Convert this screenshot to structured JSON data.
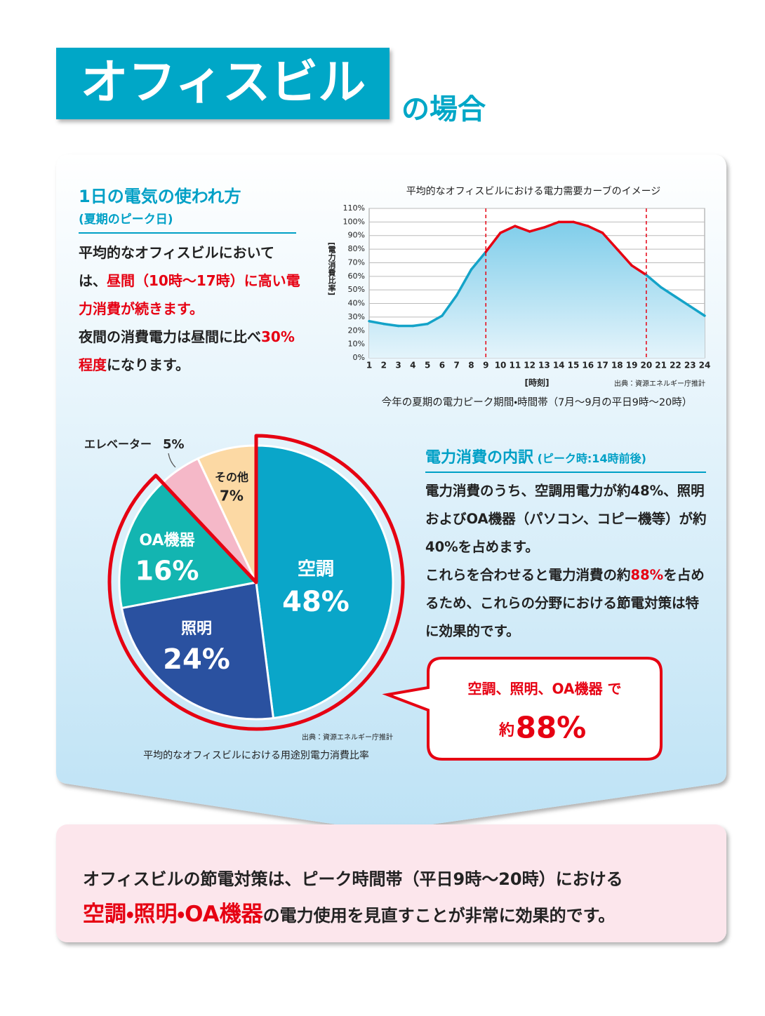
{
  "header": {
    "title": "オフィスビル",
    "suffix": "の場合"
  },
  "usage": {
    "title": "1日の電気の使われ方",
    "subtitle": "(夏期のピーク日)",
    "body": [
      [
        {
          "text": "平均的なオフィスビルにおいては、"
        },
        {
          "text": "昼間（10時～17時）に高い電力消費が続きます。",
          "emphasis": true
        }
      ],
      [
        {
          "text": "夜間の消費電力は昼間に比べ"
        },
        {
          "text": "30%程度",
          "emphasis": true
        },
        {
          "text": "になります。"
        }
      ]
    ]
  },
  "breakdown": {
    "title": "電力消費の内訳",
    "subtitle": "(ピーク時:14時前後)",
    "body": [
      [
        {
          "text": "電力消費のうち、空調用電力が約48%、照明およびOA機器（パソコン、コピー機等）が約40%を占めます。"
        }
      ],
      [
        {
          "text": "これらを合わせると電力消費の約"
        },
        {
          "text": "88%",
          "emphasis": true
        },
        {
          "text": "を占めるため、これらの分野における節電対策は特に効果的です。"
        }
      ]
    ]
  },
  "callout": {
    "line": "空調、照明、OA機器 で",
    "prefix": "約",
    "value": "88%"
  },
  "summary": {
    "body": [
      [
        {
          "text": "オフィスビルの節電対策は、ピーク時間帯（平日9時～20時）における"
        }
      ],
      [
        {
          "text": "空調・照明・OA機器",
          "emphasis": true
        },
        {
          "text": "の電力使用を見直すことが非常に効果的です。"
        }
      ]
    ]
  },
  "chart_data": [
    {
      "type": "line",
      "title": "平均的なオフィスビルにおける電力需要カーブのイメージ",
      "x_label": "[時刻]",
      "y_label": "[電力消費比率]",
      "x": [
        1,
        2,
        3,
        4,
        5,
        6,
        7,
        8,
        9,
        10,
        11,
        12,
        13,
        14,
        15,
        16,
        17,
        18,
        19,
        20,
        21,
        22,
        23,
        24
      ],
      "series": [
        {
          "color": "#14a3c8",
          "values": [
            27,
            25,
            23.5,
            23.5,
            25,
            31,
            46,
            65,
            78,
            92,
            97,
            93,
            96,
            100,
            100,
            97,
            92,
            80,
            68,
            61,
            52,
            45,
            38,
            31
          ]
        }
      ],
      "highlight": {
        "from": 9,
        "to": 20,
        "color": "#e60012"
      },
      "xlim": [
        1,
        24
      ],
      "xticks": [
        1,
        2,
        3,
        4,
        5,
        6,
        7,
        8,
        9,
        10,
        11,
        12,
        13,
        14,
        15,
        16,
        17,
        18,
        19,
        20,
        21,
        22,
        23,
        24
      ],
      "ylim": [
        0,
        110
      ],
      "yticks": [
        {
          "value": 0,
          "label": "0%"
        },
        {
          "value": 10,
          "label": "10%"
        },
        {
          "value": 20,
          "label": "20%"
        },
        {
          "value": 30,
          "label": "30%"
        },
        {
          "value": 40,
          "label": "40%"
        },
        {
          "value": 50,
          "label": "50%"
        },
        {
          "value": 60,
          "label": "60%"
        },
        {
          "value": 70,
          "label": "70%"
        },
        {
          "value": 80,
          "label": "80%"
        },
        {
          "value": 90,
          "label": "90%"
        },
        {
          "value": 100,
          "label": "100%"
        },
        {
          "value": 110,
          "label": "110%"
        }
      ],
      "grid": true,
      "source": "出典：資源エネルギー庁推計",
      "caption": "今年の夏期の電力ピーク期間・時間帯（7月～9月の平日9時～20時）"
    },
    {
      "type": "pie",
      "categories": [
        "空調",
        "照明",
        "OA機器",
        "エレベーター",
        "その他"
      ],
      "values": [
        48,
        24,
        16,
        5,
        7
      ],
      "value_labels": [
        "48%",
        "24%",
        "16%",
        "5%",
        "7%"
      ],
      "colors": [
        "#0aa6c9",
        "#2a51a0",
        "#13b5b1",
        "#f5b8c8",
        "#fcd9a4"
      ],
      "outline": {
        "slices": [
          0,
          1,
          2
        ],
        "color": "#e60012"
      },
      "source": "出典：資源エネルギー庁推計",
      "caption": "平均的なオフィスビルにおける用途別電力消費比率"
    }
  ]
}
